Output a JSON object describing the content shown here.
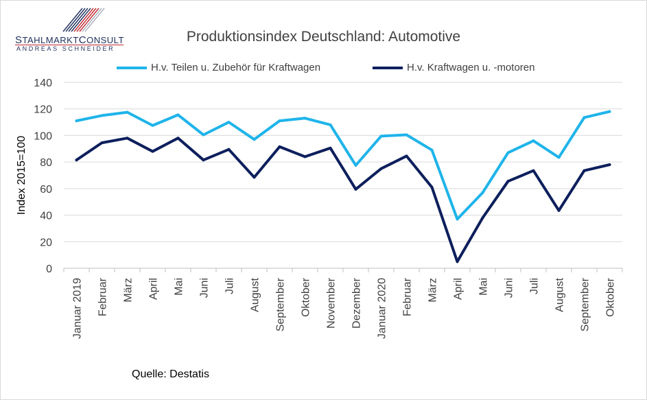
{
  "logo": {
    "name_part1_cap": "S",
    "name_part1": "TAHLMARKT",
    "name_part2_cap": "C",
    "name_part2": "ONSULT",
    "subtitle": "ANDREAS SCHNEIDER"
  },
  "source": "Quelle: Destatis",
  "colors": {
    "series1": "#1fb4ea",
    "series2": "#0d1f5c",
    "grid": "#d9d9d9",
    "axis": "#bfbfbf",
    "text": "#404040"
  },
  "chart_data": {
    "type": "line",
    "title": "Produktionsindex Deutschland: Automotive",
    "ylabel": "Index 2015=100",
    "xlabel": "",
    "ylim": [
      0,
      140
    ],
    "yticks": [
      0,
      20,
      40,
      60,
      80,
      100,
      120,
      140
    ],
    "grid": true,
    "legend_position": "top",
    "categories": [
      "Januar 2019",
      "Februar",
      "März",
      "April",
      "Mai",
      "Juni",
      "Juli",
      "August",
      "September",
      "Oktober",
      "November",
      "Dezember",
      "Januar 2020",
      "Februar",
      "März",
      "April",
      "Mai",
      "Juni",
      "Juli",
      "August",
      "September",
      "Oktober"
    ],
    "series": [
      {
        "name": "H.v. Teilen u. Zubehör für Kraftwagen",
        "color": "#1fb4ea",
        "values": [
          111,
          115,
          117.5,
          107.5,
          115.5,
          100.5,
          110,
          97,
          111,
          113,
          108,
          77.5,
          99.5,
          100.5,
          89,
          37,
          57,
          87,
          96,
          83.5,
          113.5,
          118
        ]
      },
      {
        "name": "H.v. Kraftwagen u. -motoren",
        "color": "#0d1f5c",
        "values": [
          81.5,
          94.5,
          98,
          88,
          98,
          81.5,
          89.5,
          68.5,
          91.5,
          84,
          90.5,
          59.5,
          75,
          84.5,
          61,
          5,
          38,
          65.5,
          73.5,
          43.5,
          73.5,
          78
        ]
      }
    ]
  }
}
